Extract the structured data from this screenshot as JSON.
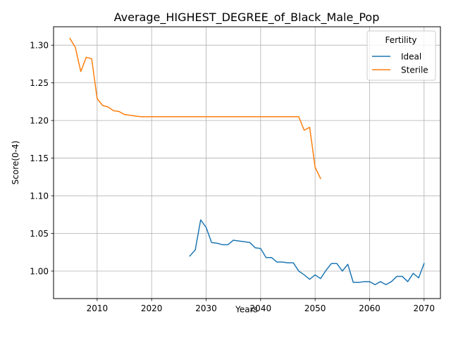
{
  "chart_data": {
    "type": "line",
    "title": "Average_HIGHEST_DEGREE_of_Black_Male_Pop",
    "xlabel": "Years",
    "ylabel": "Score(0-4)",
    "xlim": [
      2002,
      2073
    ],
    "ylim": [
      0.9635,
      1.3245
    ],
    "xticks": [
      2010,
      2020,
      2030,
      2040,
      2050,
      2060,
      2070
    ],
    "xtick_labels": [
      "2010",
      "2020",
      "2030",
      "2040",
      "2050",
      "2060",
      "2070"
    ],
    "yticks": [
      1.0,
      1.05,
      1.1,
      1.15,
      1.2,
      1.25,
      1.3
    ],
    "ytick_labels": [
      "1.00",
      "1.05",
      "1.10",
      "1.15",
      "1.20",
      "1.25",
      "1.30"
    ],
    "grid": true,
    "legend": {
      "title": "Fertility",
      "position": "upper right"
    },
    "series": [
      {
        "name": "Ideal",
        "color": "#1f77b4",
        "x": [
          2027,
          2028,
          2029,
          2030,
          2031,
          2032,
          2033,
          2034,
          2035,
          2036,
          2037,
          2038,
          2039,
          2040,
          2041,
          2042,
          2043,
          2044,
          2045,
          2046,
          2047,
          2048,
          2049,
          2050,
          2051,
          2052,
          2053,
          2054,
          2055,
          2056,
          2057,
          2058,
          2059,
          2060,
          2061,
          2062,
          2063,
          2064,
          2065,
          2066,
          2067,
          2068,
          2069,
          2070
        ],
        "y": [
          1.02,
          1.028,
          1.068,
          1.058,
          1.038,
          1.037,
          1.035,
          1.035,
          1.041,
          1.04,
          1.039,
          1.038,
          1.031,
          1.03,
          1.018,
          1.018,
          1.012,
          1.012,
          1.011,
          1.011,
          1.0,
          0.995,
          0.989,
          0.995,
          0.99,
          1.001,
          1.01,
          1.01,
          1.0,
          1.009,
          0.985,
          0.985,
          0.986,
          0.986,
          0.982,
          0.986,
          0.982,
          0.986,
          0.993,
          0.993,
          0.986,
          0.997,
          0.991,
          1.01
        ]
      },
      {
        "name": "Sterile",
        "color": "#ff7f0e",
        "x": [
          2005,
          2006,
          2007,
          2008,
          2009,
          2010,
          2011,
          2012,
          2013,
          2014,
          2015,
          2016,
          2017,
          2018,
          2019,
          2020,
          2025,
          2030,
          2035,
          2040,
          2045,
          2046,
          2047,
          2048,
          2049,
          2050,
          2051
        ],
        "y": [
          1.309,
          1.297,
          1.265,
          1.284,
          1.282,
          1.229,
          1.22,
          1.218,
          1.213,
          1.212,
          1.208,
          1.207,
          1.206,
          1.205,
          1.205,
          1.205,
          1.205,
          1.205,
          1.205,
          1.205,
          1.205,
          1.205,
          1.205,
          1.187,
          1.191,
          1.138,
          1.123
        ]
      }
    ]
  }
}
